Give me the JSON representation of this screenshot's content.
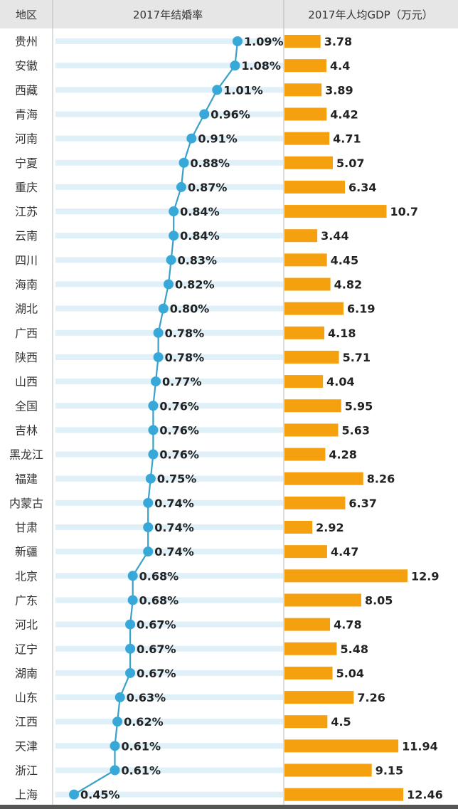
{
  "chart_data": {
    "type": "table",
    "headers": {
      "region": "地区",
      "rate": "2017年结婚率",
      "gdp": "2017年人均GDP（万元）"
    },
    "rows": [
      {
        "region": "贵州",
        "rate": 1.09,
        "rate_label": "1.09%",
        "gdp": 3.78,
        "gdp_label": "3.78"
      },
      {
        "region": "安徽",
        "rate": 1.08,
        "rate_label": "1.08%",
        "gdp": 4.4,
        "gdp_label": "4.4"
      },
      {
        "region": "西藏",
        "rate": 1.01,
        "rate_label": "1.01%",
        "gdp": 3.89,
        "gdp_label": "3.89"
      },
      {
        "region": "青海",
        "rate": 0.96,
        "rate_label": "0.96%",
        "gdp": 4.42,
        "gdp_label": "4.42"
      },
      {
        "region": "河南",
        "rate": 0.91,
        "rate_label": "0.91%",
        "gdp": 4.71,
        "gdp_label": "4.71"
      },
      {
        "region": "宁夏",
        "rate": 0.88,
        "rate_label": "0.88%",
        "gdp": 5.07,
        "gdp_label": "5.07"
      },
      {
        "region": "重庆",
        "rate": 0.87,
        "rate_label": "0.87%",
        "gdp": 6.34,
        "gdp_label": "6.34"
      },
      {
        "region": "江苏",
        "rate": 0.84,
        "rate_label": "0.84%",
        "gdp": 10.7,
        "gdp_label": "10.7"
      },
      {
        "region": "云南",
        "rate": 0.84,
        "rate_label": "0.84%",
        "gdp": 3.44,
        "gdp_label": "3.44"
      },
      {
        "region": "四川",
        "rate": 0.83,
        "rate_label": "0.83%",
        "gdp": 4.45,
        "gdp_label": "4.45"
      },
      {
        "region": "海南",
        "rate": 0.82,
        "rate_label": "0.82%",
        "gdp": 4.82,
        "gdp_label": "4.82"
      },
      {
        "region": "湖北",
        "rate": 0.8,
        "rate_label": "0.80%",
        "gdp": 6.19,
        "gdp_label": "6.19"
      },
      {
        "region": "广西",
        "rate": 0.78,
        "rate_label": "0.78%",
        "gdp": 4.18,
        "gdp_label": "4.18"
      },
      {
        "region": "陕西",
        "rate": 0.78,
        "rate_label": "0.78%",
        "gdp": 5.71,
        "gdp_label": "5.71"
      },
      {
        "region": "山西",
        "rate": 0.77,
        "rate_label": "0.77%",
        "gdp": 4.04,
        "gdp_label": "4.04"
      },
      {
        "region": "全国",
        "rate": 0.76,
        "rate_label": "0.76%",
        "gdp": 5.95,
        "gdp_label": "5.95"
      },
      {
        "region": "吉林",
        "rate": 0.76,
        "rate_label": "0.76%",
        "gdp": 5.63,
        "gdp_label": "5.63"
      },
      {
        "region": "黑龙江",
        "rate": 0.76,
        "rate_label": "0.76%",
        "gdp": 4.28,
        "gdp_label": "4.28"
      },
      {
        "region": "福建",
        "rate": 0.75,
        "rate_label": "0.75%",
        "gdp": 8.26,
        "gdp_label": "8.26"
      },
      {
        "region": "内蒙古",
        "rate": 0.74,
        "rate_label": "0.74%",
        "gdp": 6.37,
        "gdp_label": "6.37"
      },
      {
        "region": "甘肃",
        "rate": 0.74,
        "rate_label": "0.74%",
        "gdp": 2.92,
        "gdp_label": "2.92"
      },
      {
        "region": "新疆",
        "rate": 0.74,
        "rate_label": "0.74%",
        "gdp": 4.47,
        "gdp_label": "4.47"
      },
      {
        "region": "北京",
        "rate": 0.68,
        "rate_label": "0.68%",
        "gdp": 12.9,
        "gdp_label": "12.9"
      },
      {
        "region": "广东",
        "rate": 0.68,
        "rate_label": "0.68%",
        "gdp": 8.05,
        "gdp_label": "8.05"
      },
      {
        "region": "河北",
        "rate": 0.67,
        "rate_label": "0.67%",
        "gdp": 4.78,
        "gdp_label": "4.78"
      },
      {
        "region": "辽宁",
        "rate": 0.67,
        "rate_label": "0.67%",
        "gdp": 5.48,
        "gdp_label": "5.48"
      },
      {
        "region": "湖南",
        "rate": 0.67,
        "rate_label": "0.67%",
        "gdp": 5.04,
        "gdp_label": "5.04"
      },
      {
        "region": "山东",
        "rate": 0.63,
        "rate_label": "0.63%",
        "gdp": 7.26,
        "gdp_label": "7.26"
      },
      {
        "region": "江西",
        "rate": 0.62,
        "rate_label": "0.62%",
        "gdp": 4.5,
        "gdp_label": "4.5"
      },
      {
        "region": "天津",
        "rate": 0.61,
        "rate_label": "0.61%",
        "gdp": 11.94,
        "gdp_label": "11.94"
      },
      {
        "region": "浙江",
        "rate": 0.61,
        "rate_label": "0.61%",
        "gdp": 9.15,
        "gdp_label": "9.15"
      },
      {
        "region": "上海",
        "rate": 0.45,
        "rate_label": "0.45%",
        "gdp": 12.46,
        "gdp_label": "12.46"
      }
    ],
    "rate_range": [
      0.45,
      1.09
    ],
    "gdp_range": [
      0,
      12.9
    ],
    "colors": {
      "rate_line": "#3aa0c8",
      "rate_dot": "#38a8d8",
      "row_stripe": "#dff0f8",
      "gdp_bar": "#f5a00f",
      "header_bg": "#e6e6e6",
      "divider": "#bbbbbb"
    }
  }
}
